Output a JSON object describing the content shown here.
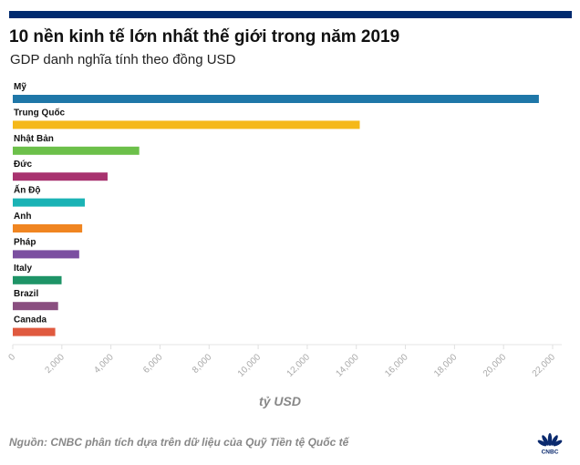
{
  "chart_data": {
    "type": "bar",
    "orientation": "horizontal",
    "title": "10 nền kinh tế lớn nhất thế giới trong năm 2019",
    "subtitle": "GDP danh nghĩa tính theo đồng USD",
    "xlabel": "tỷ USD",
    "xlim": [
      0,
      22000
    ],
    "xticks": [
      0,
      2000,
      4000,
      6000,
      8000,
      10000,
      12000,
      14000,
      16000,
      18000,
      20000,
      22000
    ],
    "xtick_labels": [
      "0",
      "2,000",
      "4,000",
      "6,000",
      "8,000",
      "10,000",
      "12,000",
      "14,000",
      "16,000",
      "18,000",
      "20,000",
      "22,000"
    ],
    "categories": [
      "Mỹ",
      "Trung Quốc",
      "Nhật Bản",
      "Đức",
      "Ấn Độ",
      "Anh",
      "Pháp",
      "Italy",
      "Brazil",
      "Canada"
    ],
    "values": [
      21439,
      14140,
      5154,
      3863,
      2936,
      2829,
      2707,
      1989,
      1847,
      1731
    ],
    "colors": [
      "#1f77a8",
      "#f5b819",
      "#6cc04a",
      "#a8336f",
      "#1bb3b5",
      "#f08521",
      "#7b4fa0",
      "#1e9467",
      "#8a4f80",
      "#e05a3f"
    ],
    "grid": false,
    "source": "Nguồn: CNBC phân tích dựa trên dữ liệu của Quỹ Tiền tệ Quốc tế"
  },
  "header_color": "#002a6f",
  "logo": {
    "text": "CNBC",
    "icon": "cnbc-peacock-logo"
  }
}
